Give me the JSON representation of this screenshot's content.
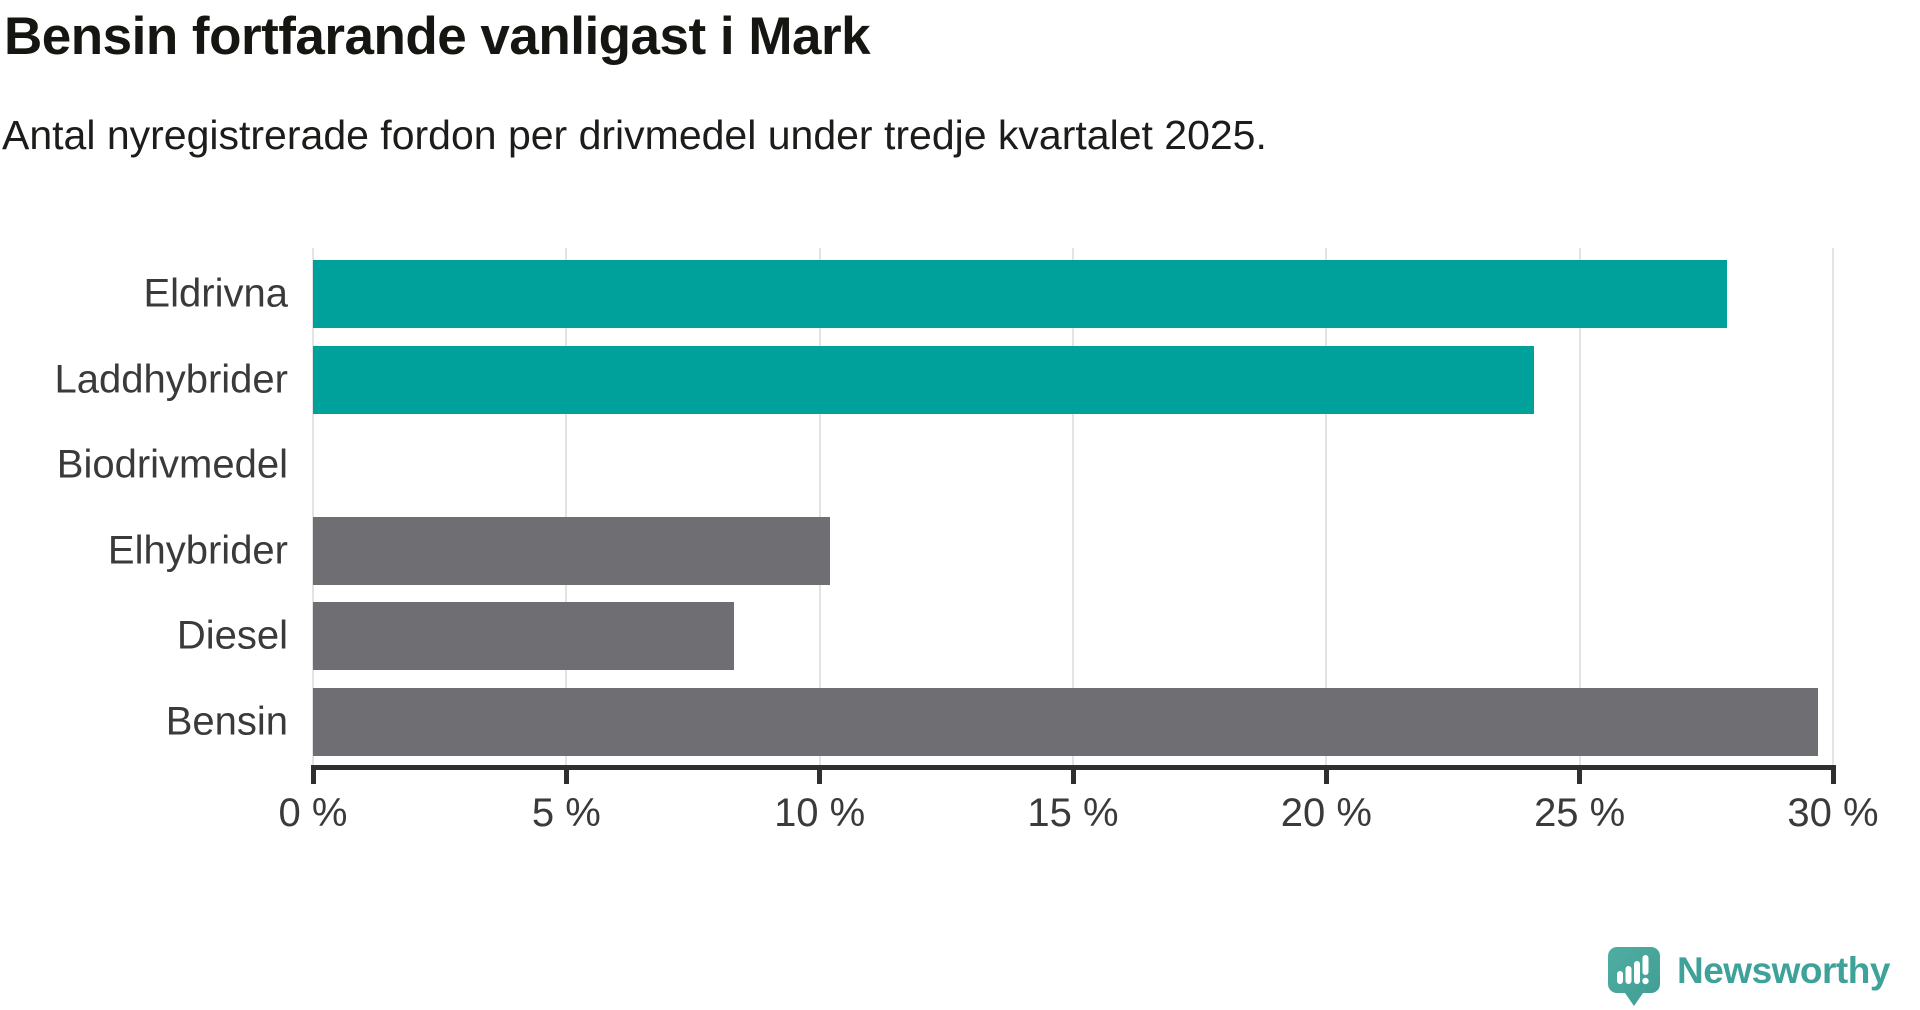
{
  "header": {
    "title": "Bensin fortfarande vanligast i Mark",
    "subtitle": "Antal nyregistrerade fordon per drivmedel under tredje kvartalet 2025."
  },
  "chart_data": {
    "type": "bar",
    "orientation": "horizontal",
    "categories": [
      "Eldrivna",
      "Laddhybrider",
      "Biodrivmedel",
      "Elhybrider",
      "Diesel",
      "Bensin"
    ],
    "values": [
      27.9,
      24.1,
      0,
      10.2,
      8.3,
      29.7
    ],
    "unit": "%",
    "xlim": [
      0,
      30
    ],
    "xticks": [
      0,
      5,
      10,
      15,
      20,
      25,
      30
    ],
    "xtick_labels": [
      "0 %",
      "5 %",
      "10 %",
      "15 %",
      "20 %",
      "25 %",
      "30 %"
    ],
    "grid": true,
    "legend": "none",
    "bar_colors": [
      "#00a19a",
      "#00a19a",
      "#00a19a",
      "#6e6e73",
      "#6e6e73",
      "#6e6e73"
    ],
    "colors": {
      "highlight": "#00a19a",
      "default": "#6e6e73",
      "gridline": "#e3e3e3",
      "axis": "#2f2f2f",
      "text": "#3a3a3a"
    }
  },
  "footer": {
    "brand_name": "Newsworthy",
    "brand_color": "#3ea29a",
    "icon": "newsworthy-speech-bubble-chart-icon"
  }
}
